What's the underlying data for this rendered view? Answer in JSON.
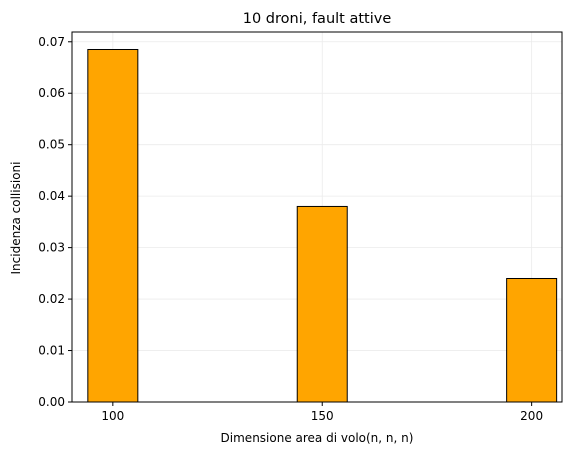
{
  "chart_data": {
    "type": "bar",
    "title": "10 droni, fault attive",
    "xlabel": "Dimensione area di volo(n, n, n)",
    "ylabel": "Incidenza collisioni",
    "categories": [
      "100",
      "150",
      "200"
    ],
    "x": [
      100,
      150,
      200
    ],
    "values": [
      0.0685,
      0.038,
      0.024
    ],
    "xlim": [
      90.25,
      207.25
    ],
    "ylim": [
      0,
      0.0719
    ],
    "yticks": [
      "0.00",
      "0.01",
      "0.02",
      "0.03",
      "0.04",
      "0.05",
      "0.06",
      "0.07"
    ],
    "bar_color": "#FFA500",
    "edge_color": "#000000",
    "grid": true,
    "legend": "none"
  }
}
